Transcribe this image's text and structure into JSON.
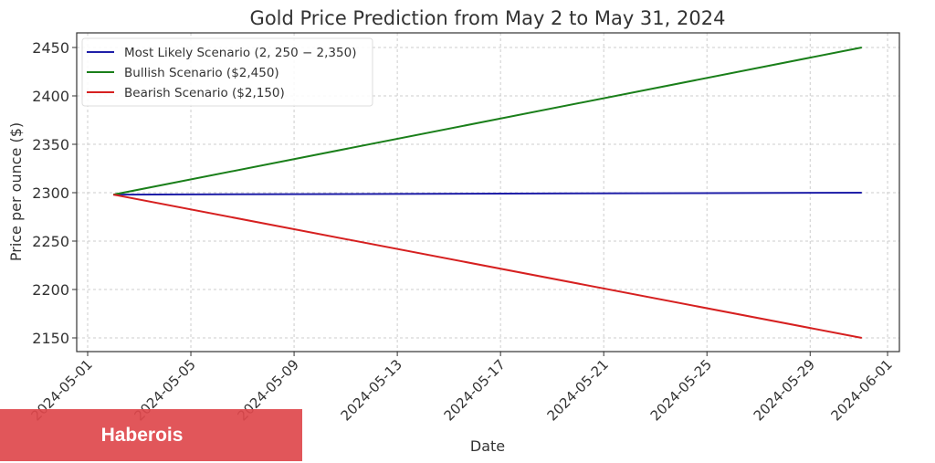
{
  "chart_data": {
    "type": "line",
    "title": "Gold Price Prediction from May 2 to May 31, 2024",
    "xlabel": "Date",
    "ylabel": "Price per ounce ($)",
    "xlim": [
      "2024-04-30.58",
      "2024-06-01.46"
    ],
    "ylim": [
      2136,
      2466
    ],
    "grid": true,
    "legend_position": "top-left",
    "x_ticks": [
      "2024-05-01",
      "2024-05-05",
      "2024-05-09",
      "2024-05-13",
      "2024-05-17",
      "2024-05-21",
      "2024-05-25",
      "2024-05-29",
      "2024-06-01"
    ],
    "y_ticks": [
      2150,
      2200,
      2250,
      2300,
      2350,
      2400,
      2450
    ],
    "series": [
      {
        "name": "Most Likely Scenario (2, 250 − 2,350)",
        "color": "#1f1fa8",
        "x": [
          "2024-05-02",
          "2024-05-31"
        ],
        "values": [
          2298,
          2300
        ]
      },
      {
        "name": "Bullish Scenario ($2,450)",
        "color": "#1a7f1a",
        "x": [
          "2024-05-02",
          "2024-05-31"
        ],
        "values": [
          2298,
          2450
        ]
      },
      {
        "name": "Bearish Scenario ($2,150)",
        "color": "#d62020",
        "x": [
          "2024-05-02",
          "2024-05-31"
        ],
        "values": [
          2298,
          2150
        ]
      }
    ]
  },
  "watermark": {
    "label": "Haberois"
  }
}
